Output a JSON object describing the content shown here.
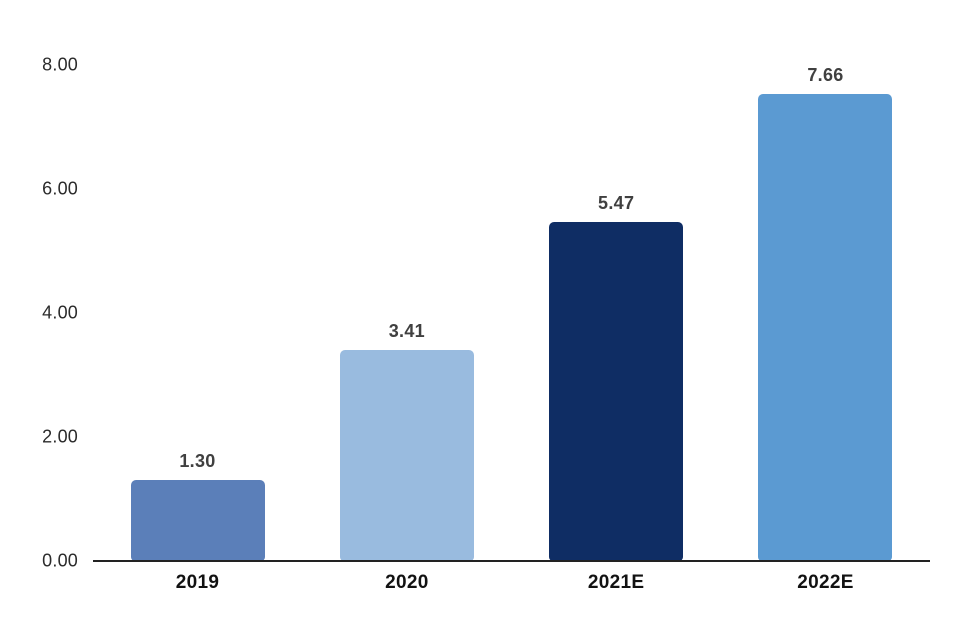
{
  "chart_data": {
    "type": "bar",
    "title": "",
    "xlabel": "",
    "ylabel": "",
    "categories": [
      "2019",
      "2020",
      "2021E",
      "2022E"
    ],
    "values": [
      1.3,
      3.41,
      5.47,
      7.66
    ],
    "value_labels": [
      "1.30",
      "3.41",
      "5.47",
      "7.66"
    ],
    "bar_colors": [
      "#5B7FB9",
      "#99BBDF",
      "#0F2D64",
      "#5B9AD2"
    ],
    "ylim": [
      0,
      8
    ],
    "yticks": [
      "0.00",
      "2.00",
      "4.00",
      "6.00",
      "8.00"
    ],
    "grid": "off",
    "legend": "none",
    "axis_line_color": "#222222",
    "background_color": "#ffffff"
  }
}
